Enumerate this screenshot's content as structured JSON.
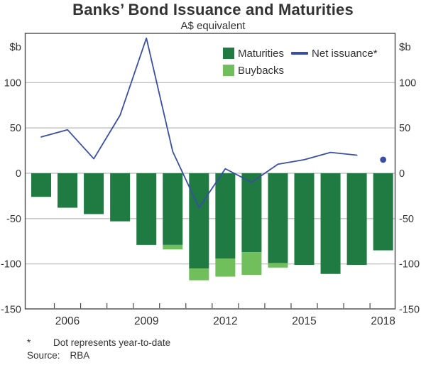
{
  "title": "Banks’ Bond Issuance and Maturities",
  "subtitle": "A$ equivalent",
  "y_axis_unit": "$b",
  "legend": [
    {
      "label": "Maturities",
      "color": "#1f7b41",
      "type": "swatch"
    },
    {
      "label": "Net issuance*",
      "color": "#3a4fa3",
      "type": "line"
    },
    {
      "label": "Buybacks",
      "color": "#70bf5c",
      "type": "swatch"
    }
  ],
  "footnote": {
    "marker": "*",
    "text": "Dot represents year-to-date"
  },
  "source": {
    "label": "Source:",
    "value": "RBA"
  },
  "colors": {
    "maturities": "#1f7b41",
    "buybacks": "#70bf5c",
    "net_issuance": "#3a4fa3",
    "gridline": "#b8b8b8",
    "frame": "#4a4a4a",
    "text": "#333333"
  },
  "chart_data": {
    "type": "bar+line",
    "title": "Banks’ Bond Issuance and Maturities",
    "subtitle": "A$ equivalent",
    "unit": "$b (A$ equivalent)",
    "categories": [
      2005,
      2006,
      2007,
      2008,
      2009,
      2010,
      2011,
      2012,
      2013,
      2014,
      2015,
      2016,
      2017,
      2018
    ],
    "series": [
      {
        "name": "Maturities",
        "type": "bar",
        "color": "#1f7b41",
        "values": [
          -26,
          -38,
          -45,
          -53,
          -79,
          -79,
          -105,
          -94,
          -87,
          -99,
          -101,
          -111,
          -101,
          -85
        ]
      },
      {
        "name": "Buybacks",
        "type": "bar-stacked-below",
        "color": "#70bf5c",
        "values": [
          0,
          0,
          0,
          0,
          0,
          5,
          13,
          20,
          25,
          5,
          0,
          0,
          0,
          0
        ]
      },
      {
        "name": "Net issuance",
        "type": "line",
        "color": "#3a4fa3",
        "x": [
          2005,
          2006,
          2007,
          2008,
          2009,
          2010,
          2011,
          2012,
          2013,
          2014,
          2015,
          2016,
          2017
        ],
        "values": [
          40,
          48,
          16,
          64,
          149,
          24,
          -38,
          5,
          -10,
          10,
          15,
          23,
          20
        ]
      },
      {
        "name": "Net issuance year-to-date",
        "type": "point",
        "color": "#3a4fa3",
        "x": 2018,
        "value": 15
      }
    ],
    "x_tick_labels": [
      2006,
      2009,
      2012,
      2015,
      2018
    ],
    "y_ticks": [
      100,
      50,
      0,
      -50,
      -100,
      -150
    ],
    "grid_values": [
      100,
      50,
      0,
      -50,
      -100
    ],
    "ylim": [
      -150,
      150
    ],
    "legend_position": "top-right-inside",
    "grid": true
  }
}
